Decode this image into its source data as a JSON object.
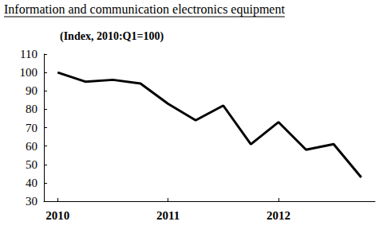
{
  "chart_data": {
    "type": "line",
    "title": "Information and communication electronics equipment",
    "subtitle": "(Index, 2010:Q1=100)",
    "categories": [
      "2010",
      null,
      null,
      null,
      "2011",
      null,
      null,
      null,
      "2012",
      null,
      null,
      null
    ],
    "values": [
      100,
      95,
      96,
      94,
      83,
      74,
      82,
      61,
      73,
      58,
      61,
      43
    ],
    "color": "#000000",
    "ylim": [
      30,
      110
    ],
    "yticks": [
      30,
      40,
      50,
      60,
      70,
      80,
      90,
      100,
      110
    ],
    "grid": false
  }
}
